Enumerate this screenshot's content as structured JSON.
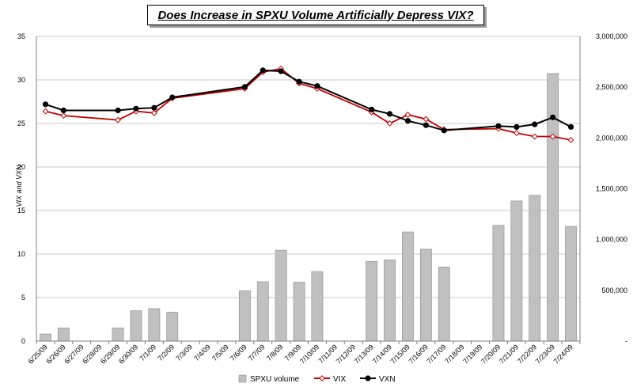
{
  "chart_data": {
    "type": "bar+line",
    "title": "Does Increase in SPXU Volume Artificially Depress VIX?",
    "ylabel_left": "VIX and VXN",
    "ylim_left": [
      0,
      35
    ],
    "yticks_left": [
      "0",
      "5",
      "10",
      "15",
      "20",
      "25",
      "30",
      "35"
    ],
    "ylim_right": [
      0,
      3000000
    ],
    "yticks_right": [
      "-",
      "500,000",
      "1,000,000",
      "1,500,000",
      "2,000,000",
      "2,500,000",
      "3,000,000"
    ],
    "categories": [
      "6/25/09",
      "6/26/09",
      "6/27/09",
      "6/28/09",
      "6/29/09",
      "6/30/09",
      "7/1/09",
      "7/2/09",
      "7/3/09",
      "7/4/09",
      "7/5/09",
      "7/6/09",
      "7/7/09",
      "7/8/09",
      "7/9/09",
      "7/10/09",
      "7/11/09",
      "7/12/09",
      "7/13/09",
      "7/14/09",
      "7/15/09",
      "7/16/09",
      "7/17/09",
      "7/18/09",
      "7/19/09",
      "7/20/09",
      "7/21/09",
      "7/22/09",
      "7/23/09",
      "7/24/09"
    ],
    "series": [
      {
        "name": "SPXU volume",
        "kind": "bar",
        "axis": "right",
        "color": "#c0c0c0",
        "values": [
          70000,
          130000,
          null,
          null,
          130000,
          300000,
          320000,
          285000,
          null,
          null,
          null,
          495000,
          585000,
          895000,
          580000,
          685000,
          null,
          null,
          785000,
          800000,
          1075000,
          905000,
          730000,
          null,
          null,
          1140000,
          1380000,
          1435000,
          2635000,
          1130000
        ]
      },
      {
        "name": "VIX",
        "kind": "line",
        "axis": "left",
        "color": "#c00000",
        "marker": "open-diamond",
        "values": [
          26.4,
          25.9,
          null,
          null,
          25.4,
          26.4,
          26.2,
          27.9,
          null,
          null,
          null,
          29.0,
          30.9,
          31.3,
          29.6,
          29.0,
          null,
          null,
          26.3,
          25.0,
          26.0,
          25.5,
          24.3,
          null,
          null,
          24.4,
          23.9,
          23.5,
          23.5,
          23.1
        ]
      },
      {
        "name": "VXN",
        "kind": "line",
        "axis": "left",
        "color": "#000000",
        "marker": "filled-circle",
        "values": [
          27.2,
          26.5,
          null,
          null,
          26.5,
          26.7,
          26.8,
          28.0,
          null,
          null,
          null,
          29.2,
          31.1,
          31.0,
          29.8,
          29.3,
          null,
          null,
          26.6,
          26.1,
          25.3,
          24.8,
          24.2,
          null,
          null,
          24.7,
          24.6,
          24.9,
          25.7,
          24.6
        ]
      }
    ],
    "grid": "horizontal",
    "legend_position": "bottom"
  }
}
